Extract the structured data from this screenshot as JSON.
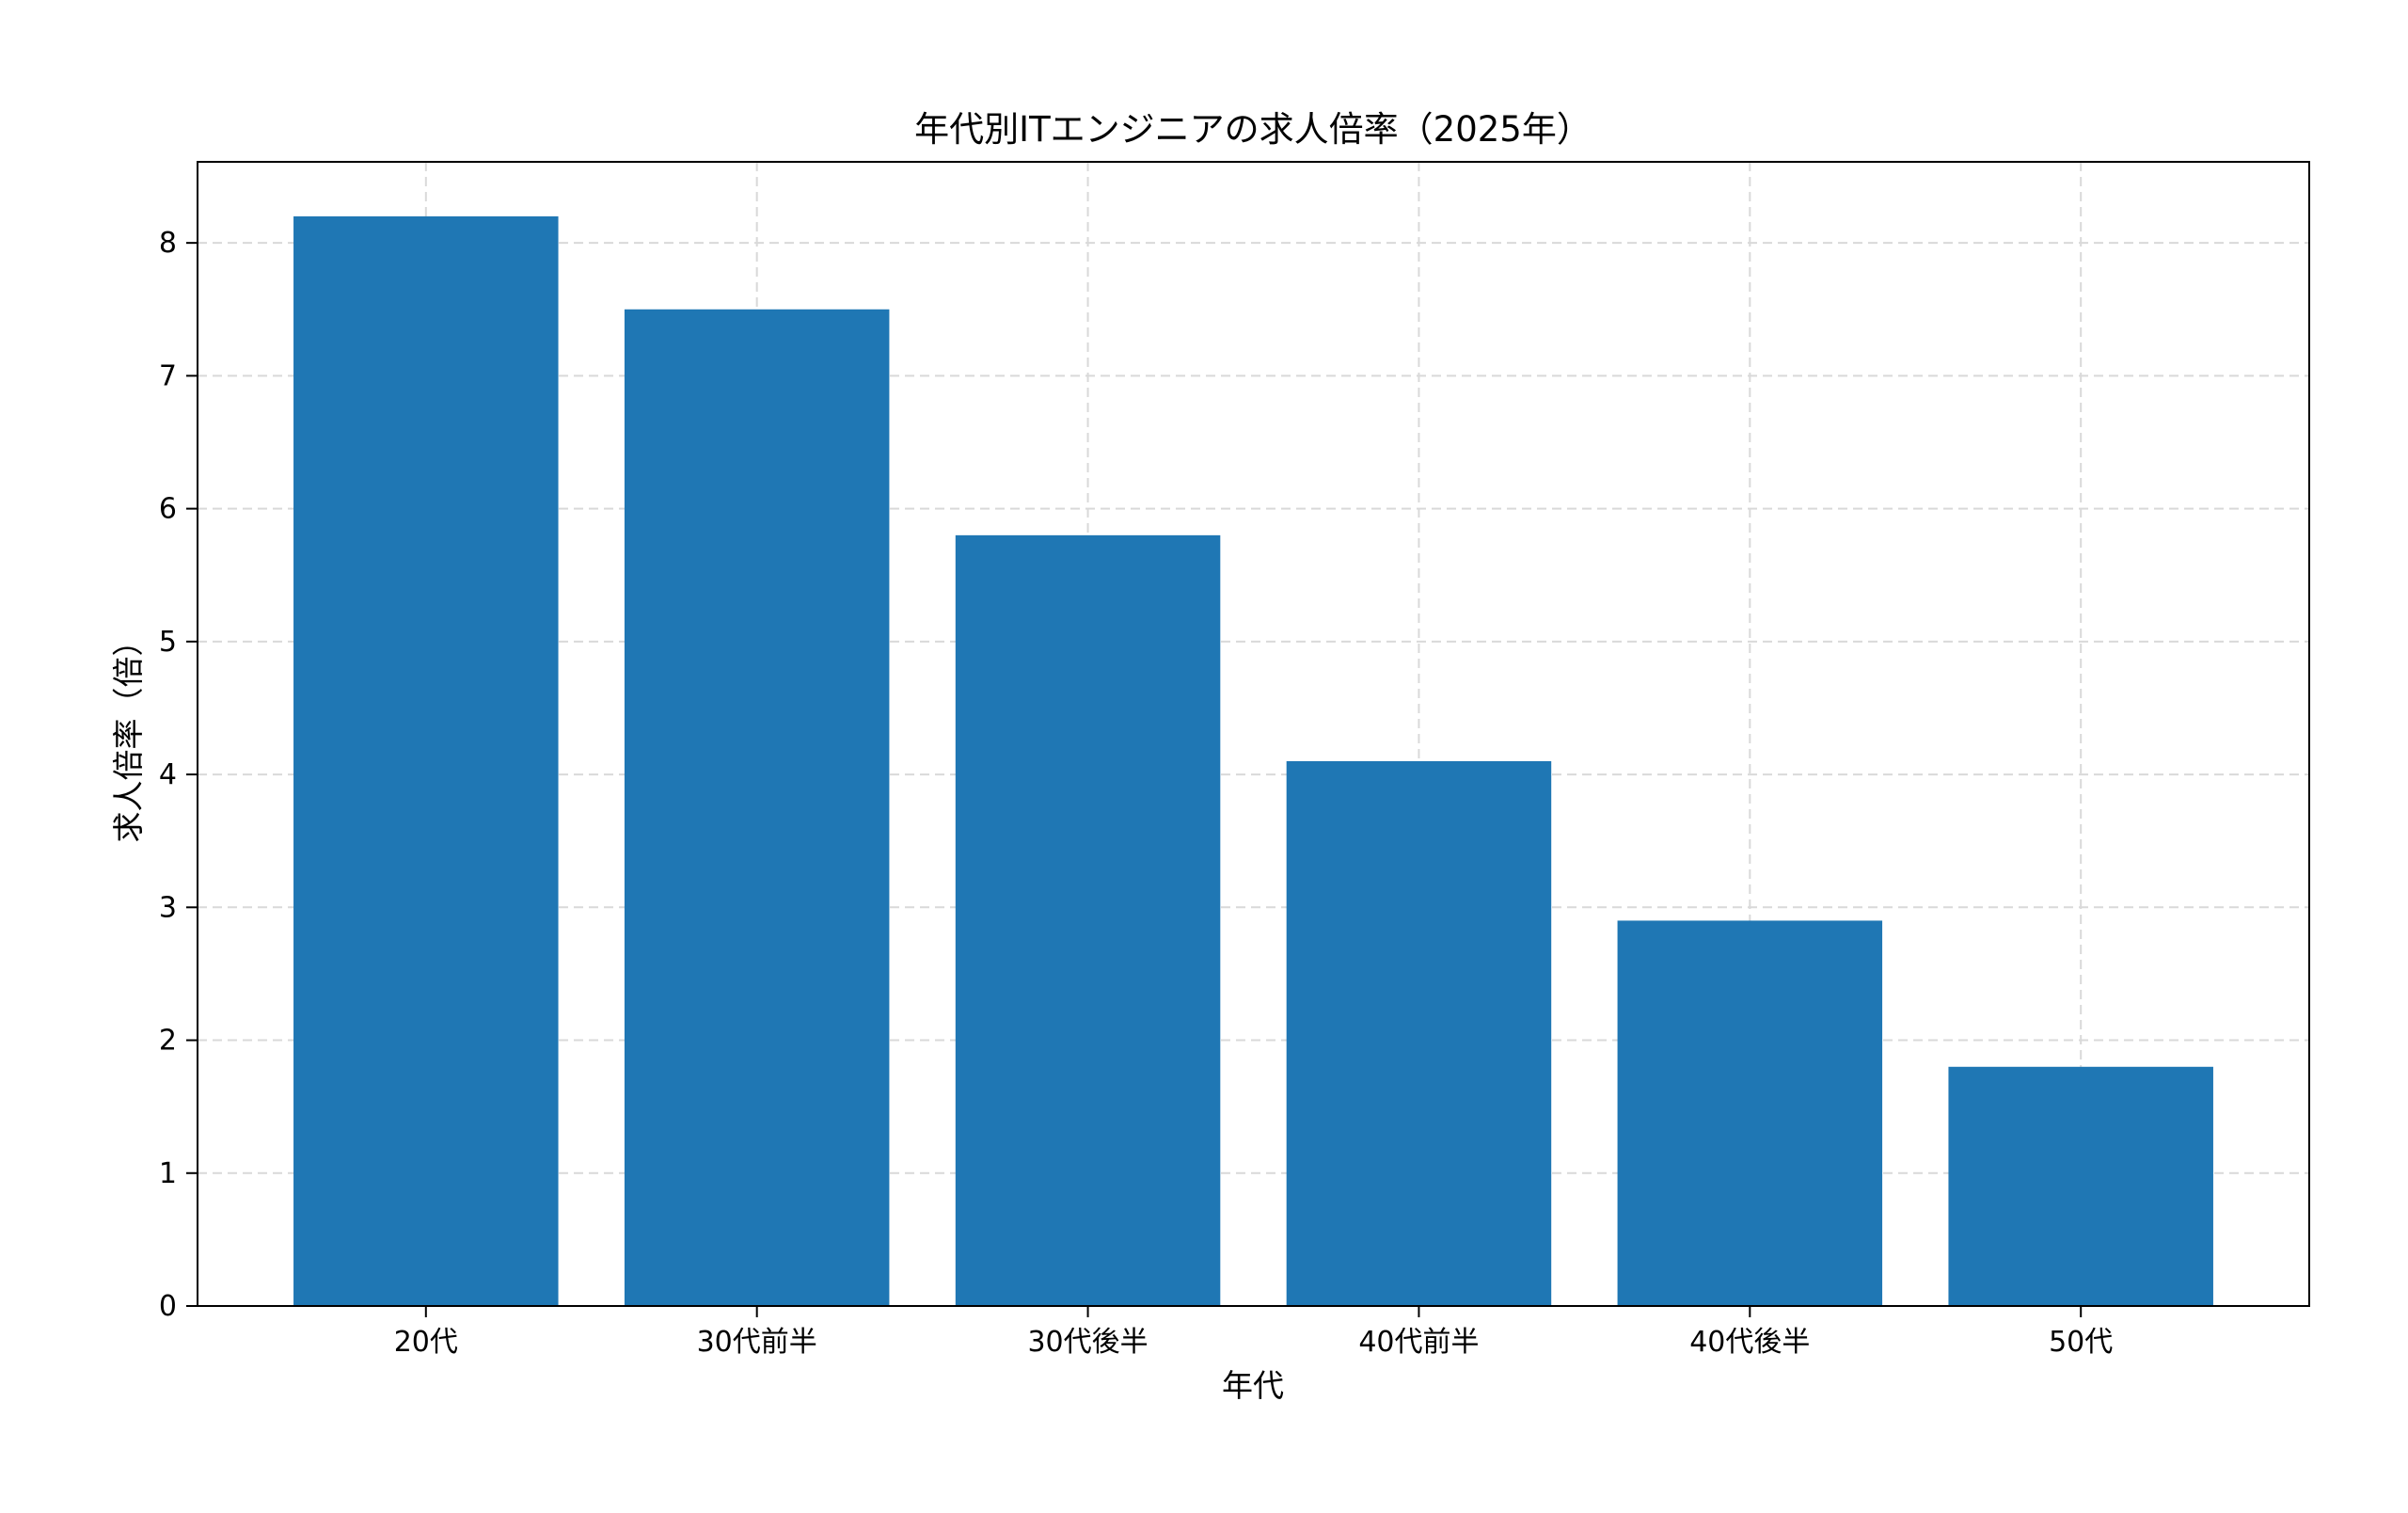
{
  "chart_data": {
    "type": "bar",
    "title": "年代別ITエンジニアの求人倍率（2025年）",
    "xlabel": "年代",
    "ylabel": "求人倍率（倍）",
    "categories": [
      "20代",
      "30代前半",
      "30代後半",
      "40代前半",
      "40代後半",
      "50代"
    ],
    "values": [
      8.2,
      7.5,
      5.8,
      4.1,
      2.9,
      1.8
    ],
    "ylim": [
      0,
      8.61
    ],
    "yticks": [
      0,
      1,
      2,
      3,
      4,
      5,
      6,
      7,
      8
    ],
    "grid": true,
    "legend": "none",
    "colors": {
      "bar": "#1f77b4",
      "grid": "#d9d9d9",
      "axis": "#000000"
    }
  }
}
